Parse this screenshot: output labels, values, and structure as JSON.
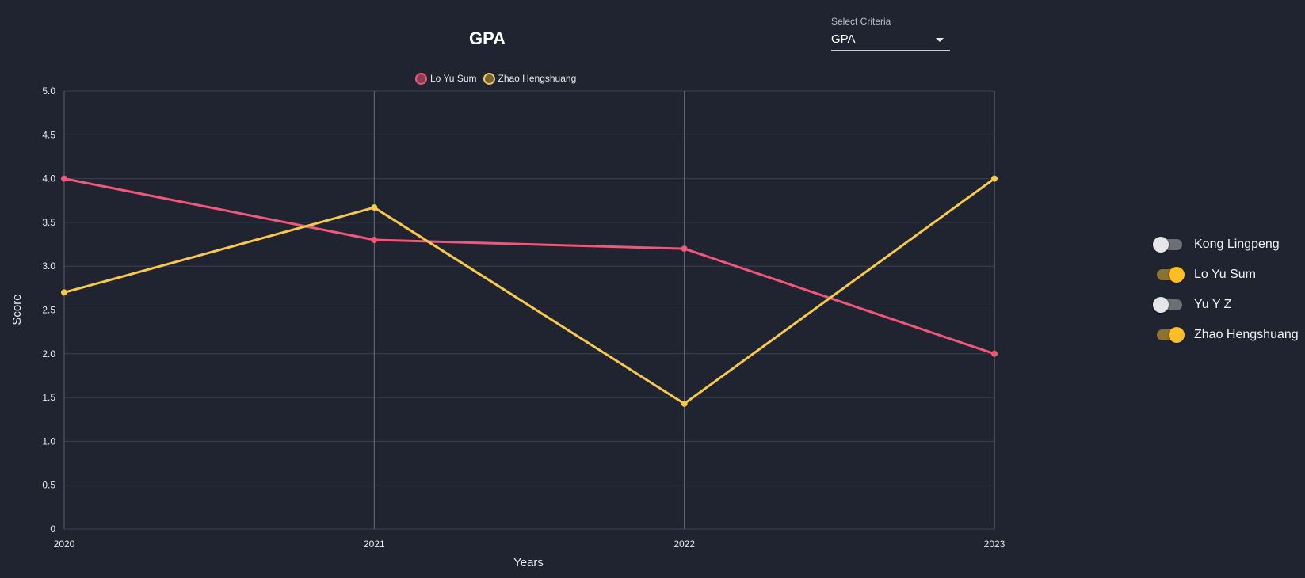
{
  "header": {
    "title": "GPA",
    "criteria_label": "Select Criteria",
    "criteria_value": "GPA"
  },
  "legend": [
    {
      "label": "Lo Yu Sum",
      "color": "#f0577a"
    },
    {
      "label": "Zhao Hengshuang",
      "color": "#f7c94f"
    }
  ],
  "toggles": [
    {
      "label": "Kong Lingpeng",
      "on": false
    },
    {
      "label": "Lo Yu Sum",
      "on": true
    },
    {
      "label": "Yu Y Z",
      "on": false
    },
    {
      "label": "Zhao Hengshuang",
      "on": true
    }
  ],
  "chart_data": {
    "type": "line",
    "title": "GPA",
    "xlabel": "Years",
    "ylabel": "Score",
    "categories": [
      "2020",
      "2021",
      "2022",
      "2023"
    ],
    "ylim": [
      0,
      5
    ],
    "yticks": [
      "0",
      "0.5",
      "1.0",
      "1.5",
      "2.0",
      "2.5",
      "3.0",
      "3.5",
      "4.0",
      "4.5",
      "5.0"
    ],
    "series": [
      {
        "name": "Lo Yu Sum",
        "color": "#f0577a",
        "values": [
          4.0,
          3.3,
          3.2,
          2.0
        ]
      },
      {
        "name": "Zhao Hengshuang",
        "color": "#f7c94f",
        "values": [
          2.7,
          3.67,
          1.43,
          4.0
        ]
      }
    ],
    "grid": true,
    "legend_position": "top"
  }
}
